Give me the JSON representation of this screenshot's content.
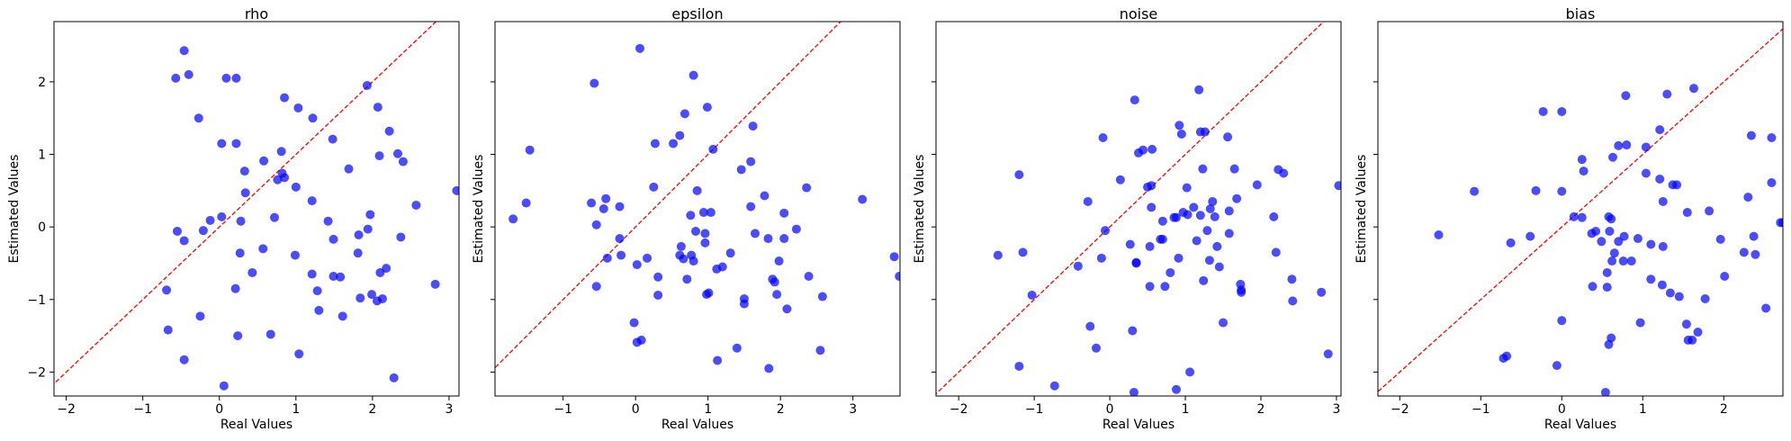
{
  "chart_data": [
    {
      "type": "scatter",
      "title": "rho",
      "xlabel": "Real Values",
      "ylabel": "Estimated Values",
      "color": "blue",
      "alpha": 0.7,
      "identity_line": {
        "color": "red",
        "dashed": true
      },
      "xlim": [
        -2.16,
        3.13
      ],
      "ylim": [
        -2.33,
        2.83
      ],
      "xticks": [
        {
          "value": -2,
          "label": "−2"
        },
        {
          "value": -1,
          "label": "−1"
        },
        0,
        1,
        2,
        3
      ],
      "yticks": [
        {
          "value": -2,
          "label": "−2"
        },
        {
          "value": -1,
          "label": "−1"
        },
        0,
        1,
        2
      ],
      "x": [
        -0.46,
        -0.57,
        -0.4,
        0.09,
        0.22,
        -0.27,
        0.03,
        0.22,
        0.85,
        1.03,
        1.22,
        1.93,
        2.07,
        2.22,
        0.58,
        0.81,
        0.33,
        0.82,
        0.85,
        0.76,
        1.0,
        0.34,
        1.48,
        1.69,
        2.09,
        2.33,
        2.4,
        3.1,
        2.57,
        1.21,
        1.42,
        -0.12,
        0.03,
        -0.21,
        -0.55,
        -0.46,
        0.28,
        0.72,
        1.97,
        1.94,
        1.82,
        1.49,
        0.99,
        0.57,
        0.27,
        0.43,
        2.37,
        1.81,
        1.21,
        1.28,
        2.18,
        2.1,
        1.58,
        1.49,
        0.21,
        -0.69,
        -0.25,
        1.3,
        1.61,
        1.84,
        1.99,
        2.06,
        2.13,
        -0.67,
        0.24,
        0.67,
        1.04,
        -0.46,
        2.28,
        2.82,
        0.06
      ],
      "values": [
        2.43,
        2.05,
        2.1,
        2.05,
        2.05,
        1.5,
        1.15,
        1.15,
        1.78,
        1.64,
        1.5,
        1.95,
        1.65,
        1.32,
        0.91,
        1.04,
        0.77,
        0.74,
        0.68,
        0.65,
        0.55,
        0.47,
        1.21,
        0.8,
        0.98,
        1.01,
        0.9,
        0.5,
        0.3,
        0.36,
        0.08,
        0.09,
        0.14,
        -0.05,
        -0.06,
        -0.19,
        0.08,
        0.13,
        0.17,
        -0.03,
        -0.11,
        -0.17,
        -0.39,
        -0.3,
        -0.36,
        -0.63,
        -0.14,
        -0.36,
        -0.65,
        -0.88,
        -0.57,
        -0.63,
        -0.69,
        -0.68,
        -0.85,
        -0.87,
        -1.23,
        -1.15,
        -1.23,
        -0.98,
        -0.93,
        -1.02,
        -0.99,
        -1.42,
        -1.5,
        -1.48,
        -1.75,
        -1.83,
        -2.08,
        -0.79,
        -2.19
      ]
    },
    {
      "type": "scatter",
      "title": "epsilon",
      "xlabel": "Real Values",
      "ylabel": "Estimated Values",
      "color": "blue",
      "alpha": 0.7,
      "sharey": true,
      "identity_line": {
        "color": "red",
        "dashed": true
      },
      "xlim": [
        -1.94,
        3.65
      ],
      "ylim": [
        -2.33,
        2.83
      ],
      "xticks": [
        {
          "value": -1,
          "label": "−1"
        },
        0,
        1,
        2,
        3
      ],
      "x": [
        0.06,
        -0.57,
        0.8,
        -1.46,
        0.99,
        0.68,
        1.07,
        0.27,
        0.52,
        0.61,
        1.62,
        1.59,
        1.46,
        2.36,
        3.13,
        0.25,
        0.85,
        -1.51,
        -0.61,
        -0.41,
        -0.44,
        -0.22,
        -1.69,
        -0.54,
        0.76,
        0.94,
        1.04,
        1.59,
        1.78,
        2.05,
        2.22,
        1.83,
        2.05,
        1.65,
        0.96,
        0.83,
        0.96,
        0.63,
        -0.22,
        -0.2,
        -0.39,
        0.02,
        0.16,
        0.61,
        0.66,
        0.8,
        0.77,
        1.31,
        1.2,
        1.12,
        1.98,
        1.89,
        2.39,
        3.57,
        3.64,
        0.31,
        0.71,
        -0.54,
        0.31,
        1.01,
        0.98,
        1.5,
        1.5,
        1.95,
        1.92,
        2.58,
        -0.02,
        0.08,
        0.02,
        2.09,
        1.4,
        1.13,
        1.84,
        2.55
      ],
      "values": [
        2.46,
        1.98,
        2.09,
        1.06,
        1.65,
        1.56,
        1.07,
        1.15,
        1.15,
        1.26,
        1.39,
        0.9,
        0.79,
        0.54,
        0.38,
        0.55,
        0.5,
        0.33,
        0.33,
        0.39,
        0.25,
        0.28,
        0.11,
        0.03,
        0.16,
        0.2,
        0.2,
        0.28,
        0.43,
        0.19,
        -0.03,
        -0.16,
        -0.16,
        -0.09,
        -0.09,
        -0.06,
        -0.22,
        -0.27,
        -0.16,
        -0.39,
        -0.43,
        -0.52,
        -0.43,
        -0.39,
        -0.44,
        -0.47,
        -0.39,
        -0.36,
        -0.55,
        -0.58,
        -0.47,
        -0.72,
        -0.68,
        -0.41,
        -0.68,
        -0.69,
        -0.72,
        -0.82,
        -0.94,
        -0.91,
        -0.93,
        -0.99,
        -1.06,
        -0.93,
        -0.76,
        -0.96,
        -1.32,
        -1.56,
        -1.59,
        -1.13,
        -1.67,
        -1.84,
        -1.95,
        -1.7
      ]
    },
    {
      "type": "scatter",
      "title": "noise",
      "xlabel": "Real Values",
      "ylabel": "Estimated Values",
      "color": "blue",
      "alpha": 0.7,
      "sharey": true,
      "identity_line": {
        "color": "red",
        "dashed": true
      },
      "xlim": [
        -2.3,
        3.06
      ],
      "ylim": [
        -2.33,
        2.83
      ],
      "xticks": [
        {
          "value": -2,
          "label": "−2"
        },
        {
          "value": -1,
          "label": "−1"
        },
        0,
        1,
        2,
        3
      ],
      "x": [
        0.33,
        1.18,
        -0.09,
        0.38,
        0.44,
        0.56,
        0.92,
        0.95,
        1.2,
        1.26,
        1.56,
        -1.2,
        0.14,
        0.5,
        0.55,
        1.23,
        1.65,
        1.02,
        1.95,
        2.23,
        2.3,
        0.55,
        1.11,
        1.2,
        1.33,
        1.36,
        1.68,
        1.03,
        0.97,
        0.85,
        0.88,
        1.58,
        1.39,
        -0.29,
        -0.06,
        0.7,
        2.17,
        3.03,
        0.67,
        0.7,
        1.29,
        1.15,
        1.42,
        1.58,
        0.27,
        0.53,
        2.2,
        -1.48,
        -1.15,
        -0.42,
        -0.11,
        0.35,
        0.35,
        0.91,
        1.32,
        1.45,
        0.8,
        0.73,
        0.53,
        1.24,
        1.73,
        1.74,
        1.74,
        2.41,
        2.42,
        2.8,
        -1.03,
        -0.26,
        0.3,
        -0.18,
        1.5,
        2.89,
        -1.2,
        -0.73,
        0.32,
        0.88,
        1.06
      ],
      "values": [
        1.75,
        1.89,
        1.23,
        1.02,
        1.06,
        1.07,
        1.4,
        1.28,
        1.31,
        1.31,
        1.24,
        0.72,
        0.65,
        0.55,
        0.57,
        0.8,
        0.8,
        0.54,
        0.58,
        0.79,
        0.74,
        0.27,
        0.27,
        0.16,
        0.25,
        0.35,
        0.39,
        0.17,
        0.2,
        0.13,
        0.13,
        0.22,
        0.14,
        0.35,
        -0.05,
        0.08,
        0.14,
        0.57,
        -0.17,
        -0.17,
        -0.05,
        -0.19,
        -0.27,
        -0.09,
        -0.24,
        -0.27,
        -0.35,
        -0.39,
        -0.35,
        -0.54,
        -0.43,
        -0.5,
        -0.49,
        -0.43,
        -0.46,
        -0.55,
        -0.63,
        -0.82,
        -0.82,
        -0.74,
        -0.79,
        -0.87,
        -0.9,
        -0.72,
        -1.02,
        -0.9,
        -0.94,
        -1.37,
        -1.43,
        -1.67,
        -1.32,
        -1.75,
        -1.92,
        -2.19,
        -2.28,
        -2.24,
        -2.0
      ]
    },
    {
      "type": "scatter",
      "title": "bias",
      "xlabel": "Real Values",
      "ylabel": "Estimated Values",
      "color": "blue",
      "alpha": 0.7,
      "sharey": true,
      "identity_line": {
        "color": "red",
        "dashed": true
      },
      "xlim": [
        -2.27,
        2.73
      ],
      "ylim": [
        -2.33,
        2.83
      ],
      "xticks": [
        {
          "value": -2,
          "label": "−2"
        },
        {
          "value": -1,
          "label": "−1"
        },
        0,
        1,
        2
      ],
      "x": [
        1.63,
        1.3,
        0.79,
        -0.23,
        0.0,
        1.21,
        0.7,
        0.8,
        1.04,
        0.63,
        0.25,
        0.27,
        2.34,
        2.59,
        1.04,
        1.21,
        1.37,
        1.42,
        2.59,
        -1.08,
        -0.32,
        0.0,
        1.25,
        1.55,
        1.82,
        2.3,
        0.15,
        0.25,
        0.58,
        0.61,
        2.7,
        2.73,
        -1.52,
        -0.39,
        -0.63,
        0.42,
        0.59,
        0.77,
        0.49,
        0.37,
        0.7,
        0.94,
        1.1,
        1.25,
        2.37,
        2.25,
        2.39,
        1.96,
        0.65,
        0.62,
        0.76,
        0.86,
        0.56,
        2.01,
        1.1,
        0.38,
        0.56,
        1.24,
        1.34,
        1.45,
        1.77,
        2.52,
        0.0,
        0.97,
        1.54,
        1.68,
        0.61,
        0.58,
        1.56,
        1.61,
        -0.68,
        -0.72,
        -0.06,
        0.54
      ],
      "values": [
        1.91,
        1.83,
        1.81,
        1.59,
        1.59,
        1.34,
        1.12,
        1.13,
        1.1,
        0.96,
        0.93,
        0.77,
        1.26,
        1.23,
        0.74,
        0.66,
        0.58,
        0.58,
        0.61,
        0.49,
        0.5,
        0.49,
        0.35,
        0.2,
        0.22,
        0.41,
        0.14,
        0.13,
        0.14,
        0.11,
        0.06,
        0.06,
        -0.11,
        -0.13,
        -0.22,
        -0.06,
        -0.06,
        -0.13,
        -0.2,
        -0.09,
        -0.2,
        -0.16,
        -0.24,
        -0.27,
        -0.13,
        -0.35,
        -0.38,
        -0.17,
        -0.36,
        -0.47,
        -0.47,
        -0.47,
        -0.63,
        -0.68,
        -0.72,
        -0.82,
        -0.83,
        -0.8,
        -0.91,
        -0.96,
        -0.99,
        -1.12,
        -1.29,
        -1.32,
        -1.34,
        -1.45,
        -1.53,
        -1.62,
        -1.56,
        -1.56,
        -1.78,
        -1.81,
        -1.91,
        -2.28
      ]
    }
  ]
}
